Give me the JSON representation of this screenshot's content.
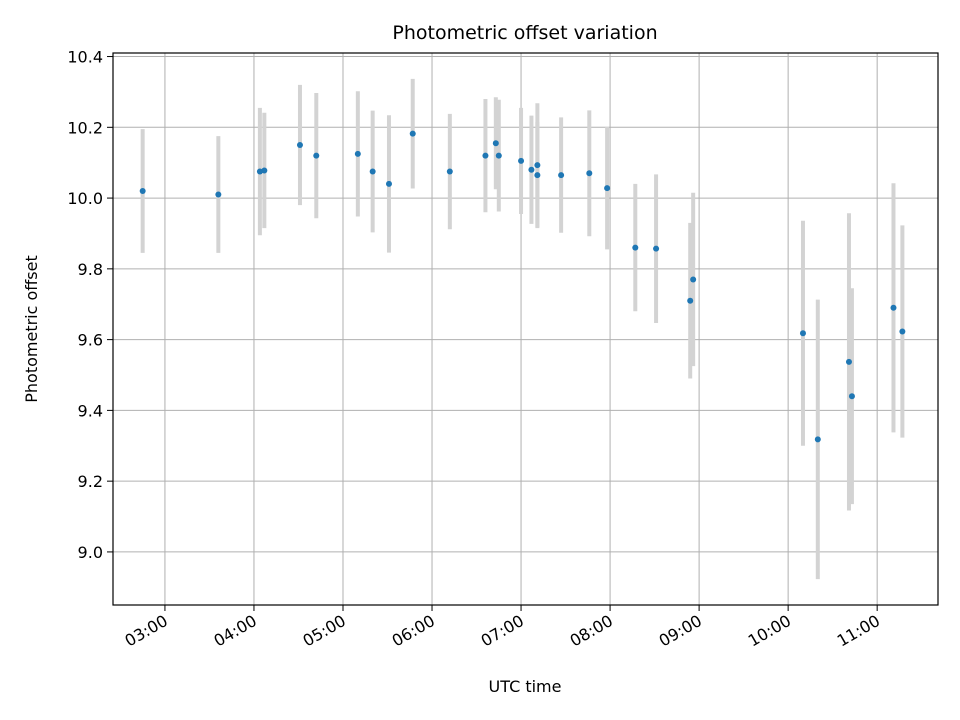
{
  "chart_data": {
    "type": "scatter",
    "title": "Photometric offset variation",
    "xlabel": "UTC time",
    "ylabel": "Photometric offset",
    "x_ticks": [
      "03:00",
      "04:00",
      "05:00",
      "06:00",
      "07:00",
      "08:00",
      "09:00",
      "10:00",
      "11:00"
    ],
    "y_ticks": [
      "9.0",
      "9.2",
      "9.4",
      "9.6",
      "9.8",
      "10.0",
      "10.2",
      "10.4"
    ],
    "xlim": [
      "02:25",
      "11:41"
    ],
    "ylim": [
      8.85,
      10.41
    ],
    "grid": true,
    "colors": {
      "point": "#1f77b4",
      "errorbar": "#d3d3d3",
      "grid": "#b0b0b0"
    },
    "series": [
      {
        "points": [
          {
            "x": "02:45",
            "y": 10.02,
            "err": 0.175
          },
          {
            "x": "03:36",
            "y": 10.01,
            "err": 0.165
          },
          {
            "x": "04:04",
            "y": 10.075,
            "err": 0.18
          },
          {
            "x": "04:07",
            "y": 10.078,
            "err": 0.163
          },
          {
            "x": "04:31",
            "y": 10.15,
            "err": 0.17
          },
          {
            "x": "04:42",
            "y": 10.12,
            "err": 0.177
          },
          {
            "x": "05:10",
            "y": 10.125,
            "err": 0.177
          },
          {
            "x": "05:20",
            "y": 10.075,
            "err": 0.172
          },
          {
            "x": "05:31",
            "y": 10.04,
            "err": 0.194
          },
          {
            "x": "05:47",
            "y": 10.182,
            "err": 0.155
          },
          {
            "x": "06:12",
            "y": 10.075,
            "err": 0.163
          },
          {
            "x": "06:36",
            "y": 10.12,
            "err": 0.16
          },
          {
            "x": "06:43",
            "y": 10.155,
            "err": 0.13
          },
          {
            "x": "06:45",
            "y": 10.12,
            "err": 0.158
          },
          {
            "x": "07:00",
            "y": 10.105,
            "err": 0.15
          },
          {
            "x": "07:07",
            "y": 10.08,
            "err": 0.153
          },
          {
            "x": "07:11",
            "y": 10.093,
            "err": 0.175
          },
          {
            "x": "07:11",
            "y": 10.065,
            "err": 0.15
          },
          {
            "x": "07:27",
            "y": 10.065,
            "err": 0.163
          },
          {
            "x": "07:46",
            "y": 10.07,
            "err": 0.178
          },
          {
            "x": "07:58",
            "y": 10.028,
            "err": 0.173
          },
          {
            "x": "08:17",
            "y": 9.86,
            "err": 0.18
          },
          {
            "x": "08:31",
            "y": 9.857,
            "err": 0.21
          },
          {
            "x": "08:54",
            "y": 9.71,
            "err": 0.22
          },
          {
            "x": "08:56",
            "y": 9.77,
            "err": 0.245
          },
          {
            "x": "10:10",
            "y": 9.618,
            "err": 0.318
          },
          {
            "x": "10:20",
            "y": 9.318,
            "err": 0.395
          },
          {
            "x": "10:41",
            "y": 9.537,
            "err": 0.42
          },
          {
            "x": "10:43",
            "y": 9.44,
            "err": 0.305
          },
          {
            "x": "11:11",
            "y": 9.69,
            "err": 0.352
          },
          {
            "x": "11:17",
            "y": 9.623,
            "err": 0.3
          }
        ]
      }
    ]
  }
}
